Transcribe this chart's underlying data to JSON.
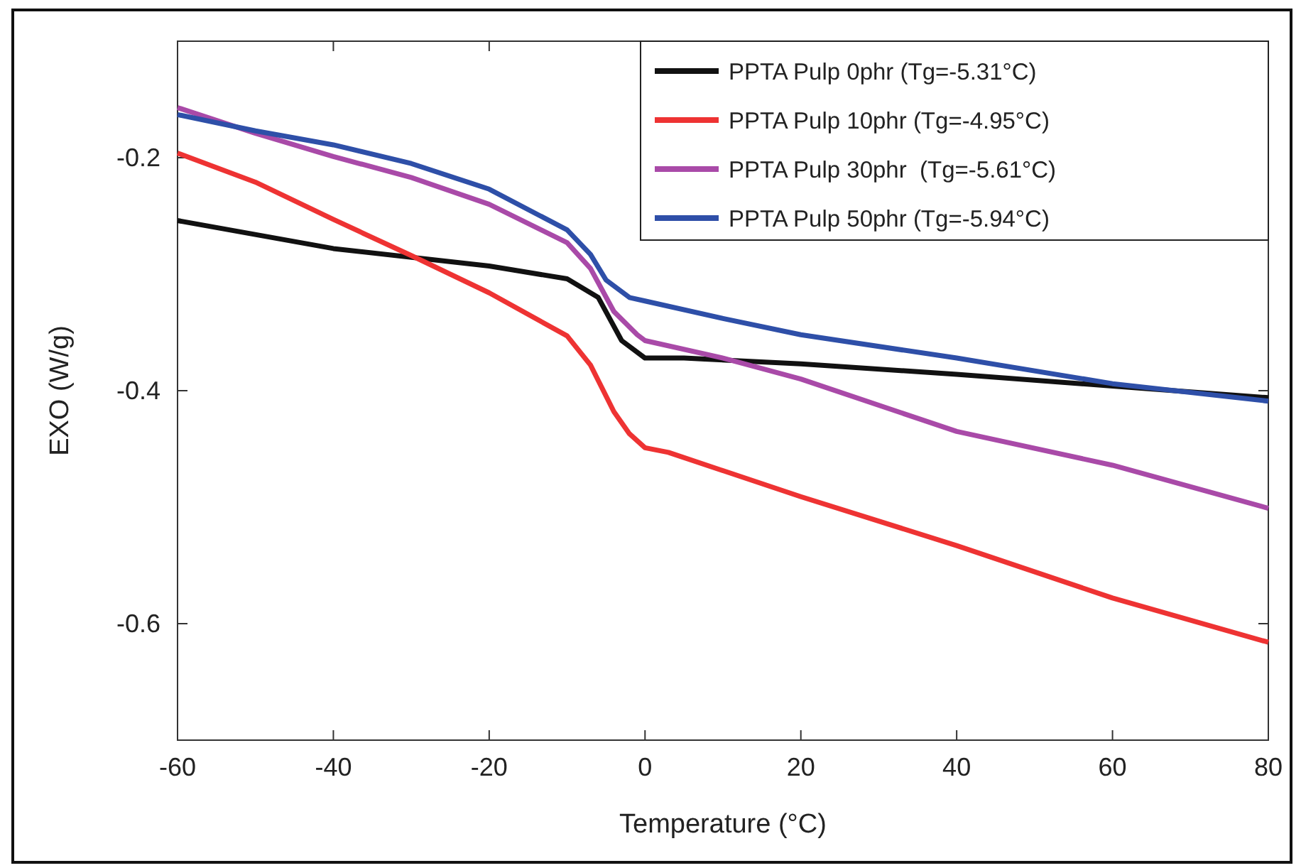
{
  "chart_data": {
    "type": "line",
    "xlabel": "Temperature (°C)",
    "ylabel": "EXO (W/g)",
    "xlim": [
      -60,
      80
    ],
    "xticks": [
      -60,
      -40,
      -20,
      0,
      20,
      40,
      60,
      80
    ],
    "ylim": [
      -0.7,
      -0.1
    ],
    "yticks": [
      -0.6,
      -0.4,
      -0.2
    ],
    "legend": "top right",
    "grid": false,
    "marker": "none",
    "line_style": "solid",
    "series": [
      {
        "name": "PPTA Pulp 0phr (Tg=-5.31°C)",
        "color": "#111111",
        "x": [
          -60,
          -40,
          -20,
          -10,
          -6,
          -3,
          0,
          5,
          20,
          40,
          60,
          80
        ],
        "values": [
          -0.254,
          -0.278,
          -0.293,
          -0.304,
          -0.32,
          -0.357,
          -0.372,
          -0.372,
          -0.377,
          -0.386,
          -0.396,
          -0.406
        ]
      },
      {
        "name": "PPTA Pulp 10phr (Tg=-4.95°C)",
        "color": "#ee3333",
        "x": [
          -60,
          -50,
          -40,
          -30,
          -20,
          -10,
          -7,
          -4,
          -2,
          0,
          3,
          20,
          40,
          60,
          80
        ],
        "values": [
          -0.196,
          -0.221,
          -0.253,
          -0.284,
          -0.316,
          -0.353,
          -0.378,
          -0.418,
          -0.437,
          -0.449,
          -0.453,
          -0.491,
          -0.533,
          -0.578,
          -0.616
        ]
      },
      {
        "name": "PPTA Pulp 30phr  (Tg=-5.61°C)",
        "color": "#a94aa8",
        "x": [
          -60,
          -50,
          -40,
          -30,
          -20,
          -10,
          -7,
          -4,
          -1,
          0,
          10,
          20,
          40,
          60,
          80
        ],
        "values": [
          -0.157,
          -0.179,
          -0.199,
          -0.217,
          -0.24,
          -0.273,
          -0.295,
          -0.332,
          -0.352,
          -0.357,
          -0.372,
          -0.39,
          -0.435,
          -0.464,
          -0.501
        ]
      },
      {
        "name": "PPTA Pulp 50phr (Tg=-5.94°C)",
        "color": "#2e4fa8",
        "x": [
          -60,
          -50,
          -40,
          -30,
          -20,
          -10,
          -7,
          -5,
          -2,
          0,
          10,
          20,
          40,
          60,
          80
        ],
        "values": [
          -0.163,
          -0.177,
          -0.189,
          -0.205,
          -0.227,
          -0.262,
          -0.283,
          -0.305,
          -0.32,
          -0.323,
          -0.338,
          -0.352,
          -0.372,
          -0.394,
          -0.409
        ]
      }
    ]
  }
}
